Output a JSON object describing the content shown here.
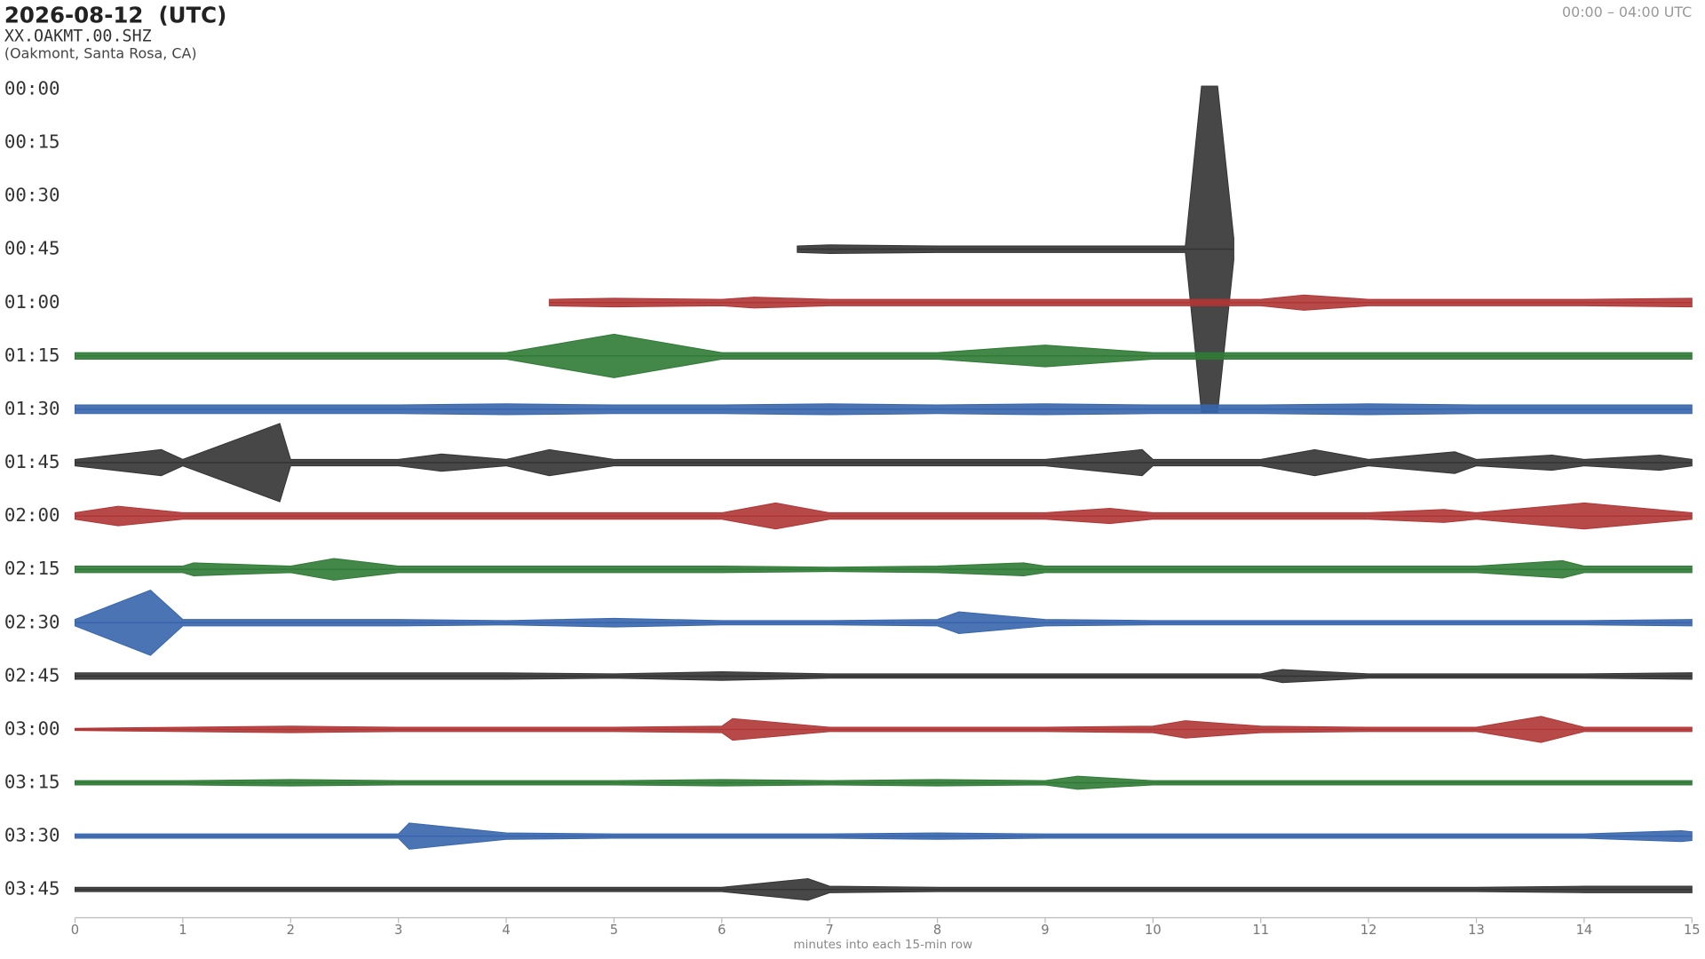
{
  "chart_data": {
    "type": "helicorder",
    "title": "2026-08-12  (UTC)",
    "subtitle": "XX.OAKMT.00.SHZ",
    "location": "(Oakmont, Santa Rosa, CA)",
    "time_range": "00:00 – 04:00 UTC",
    "xlabel": "minutes into each 15-min row",
    "xlim": [
      0,
      15
    ],
    "xticks": [
      0,
      1,
      2,
      3,
      4,
      5,
      6,
      7,
      8,
      9,
      10,
      11,
      12,
      13,
      14,
      15
    ],
    "series": [
      {
        "name": "00:00",
        "color": "#b03535",
        "x": [],
        "values": []
      },
      {
        "name": "00:15",
        "color": "#2f7a35",
        "x": [],
        "values": []
      },
      {
        "name": "00:30",
        "color": "#3765ad",
        "x": [],
        "values": []
      },
      {
        "name": "00:45",
        "color": "#333333",
        "x": [
          6.7,
          7,
          8,
          9,
          10,
          10.3,
          10.45,
          10.6,
          10.75
        ],
        "values": [
          3,
          4,
          3,
          3,
          3,
          3,
          150,
          150,
          10
        ]
      },
      {
        "name": "01:00",
        "color": "#b03535",
        "x": [
          4.4,
          5,
          6,
          6.3,
          7,
          8,
          8.8,
          9,
          10,
          11,
          11.4,
          12,
          13,
          14,
          15
        ],
        "values": [
          3,
          4,
          3,
          5,
          3,
          3,
          3,
          3,
          3,
          3,
          7,
          3,
          3,
          3,
          4
        ]
      },
      {
        "name": "01:15",
        "color": "#2f7a35",
        "x": [
          0,
          1,
          2,
          3,
          4,
          5,
          6,
          7,
          8,
          9,
          10,
          11,
          12,
          13,
          14,
          15
        ],
        "values": [
          3,
          3,
          3,
          3,
          3,
          20,
          3,
          3,
          3,
          10,
          3,
          3,
          3,
          3,
          3,
          3
        ]
      },
      {
        "name": "01:30",
        "color": "#3765ad",
        "x": [
          0,
          1,
          2,
          3,
          4,
          5,
          6,
          7,
          8,
          9,
          10,
          11,
          12,
          13,
          14,
          15
        ],
        "values": [
          4,
          4,
          4,
          4,
          5,
          4,
          4,
          5,
          4,
          5,
          4,
          4,
          5,
          4,
          4,
          4
        ]
      },
      {
        "name": "01:45",
        "color": "#333333",
        "x": [
          0,
          0.8,
          1,
          1.9,
          2,
          3,
          3.4,
          4,
          4.4,
          5,
          6,
          7,
          8,
          9,
          9.9,
          10,
          11,
          11.5,
          12,
          12.8,
          13,
          13.7,
          14,
          14.7,
          15
        ],
        "values": [
          3,
          12,
          3,
          36,
          3,
          3,
          8,
          3,
          12,
          3,
          3,
          3,
          3,
          3,
          12,
          3,
          3,
          12,
          3,
          10,
          3,
          7,
          3,
          7,
          3
        ]
      },
      {
        "name": "02:00",
        "color": "#b03535",
        "x": [
          0,
          0.4,
          1,
          2,
          3,
          4,
          5,
          6,
          6.5,
          7,
          8,
          9,
          9.6,
          10,
          11,
          12,
          12.7,
          13,
          14,
          15
        ],
        "values": [
          3,
          9,
          3,
          3,
          3,
          3,
          3,
          3,
          12,
          3,
          3,
          3,
          7,
          3,
          3,
          3,
          6,
          3,
          12,
          3
        ]
      },
      {
        "name": "02:15",
        "color": "#2f7a35",
        "x": [
          0,
          1,
          1.1,
          2,
          2.4,
          3,
          4,
          5,
          6,
          7,
          8,
          8.8,
          9,
          10,
          11,
          12,
          13,
          13.8,
          14,
          15
        ],
        "values": [
          3,
          3,
          6,
          3,
          10,
          3,
          3,
          3,
          3,
          2,
          3,
          6,
          3,
          3,
          3,
          3,
          3,
          8,
          3,
          3
        ]
      },
      {
        "name": "02:30",
        "color": "#3765ad",
        "x": [
          0,
          0.7,
          1,
          2,
          3,
          4,
          5,
          6,
          7,
          8,
          8.2,
          9,
          10,
          11,
          12,
          13,
          14,
          15
        ],
        "values": [
          3,
          30,
          3,
          3,
          3,
          2,
          4,
          2,
          2,
          3,
          10,
          3,
          2,
          2,
          2,
          2,
          2,
          3
        ]
      },
      {
        "name": "02:45",
        "color": "#333333",
        "x": [
          0,
          1,
          2,
          3,
          4,
          5,
          6,
          7,
          8,
          9,
          10,
          11,
          11.2,
          12,
          13,
          14,
          15
        ],
        "values": [
          3,
          3,
          3,
          3,
          3,
          2,
          4,
          2,
          2,
          2,
          2,
          2,
          6,
          2,
          2,
          2,
          3
        ]
      },
      {
        "name": "03:00",
        "color": "#b03535",
        "x": [
          0,
          1,
          2,
          3,
          4,
          5,
          6,
          6.1,
          7,
          8,
          9,
          10,
          10.3,
          11,
          12,
          13,
          13.6,
          14,
          15
        ],
        "values": [
          1,
          2,
          3,
          2,
          2,
          2,
          3,
          10,
          2,
          2,
          2,
          3,
          8,
          3,
          2,
          2,
          12,
          2,
          2
        ]
      },
      {
        "name": "03:15",
        "color": "#2f7a35",
        "x": [
          0,
          1,
          2,
          3,
          4,
          5,
          6,
          7,
          8,
          9,
          9.3,
          10,
          11,
          12,
          13,
          14,
          15
        ],
        "values": [
          2,
          2,
          3,
          2,
          2,
          2,
          3,
          2,
          3,
          2,
          6,
          2,
          2,
          2,
          2,
          2,
          2
        ]
      },
      {
        "name": "03:30",
        "color": "#3765ad",
        "x": [
          0,
          1,
          2,
          3,
          3.1,
          4,
          5,
          6,
          7,
          8,
          9,
          10,
          11,
          12,
          13,
          14,
          14.9,
          15
        ],
        "values": [
          2,
          2,
          2,
          2,
          12,
          3,
          2,
          2,
          2,
          3,
          2,
          2,
          2,
          2,
          2,
          2,
          5,
          4
        ]
      },
      {
        "name": "03:45",
        "color": "#333333",
        "x": [
          0,
          1,
          2,
          3,
          4,
          5,
          6,
          6.8,
          7,
          8,
          9,
          10,
          11,
          12,
          13,
          14,
          15
        ],
        "values": [
          2,
          2,
          2,
          2,
          2,
          2,
          2,
          10,
          3,
          2,
          2,
          2,
          2,
          2,
          2,
          3,
          3
        ]
      }
    ]
  }
}
